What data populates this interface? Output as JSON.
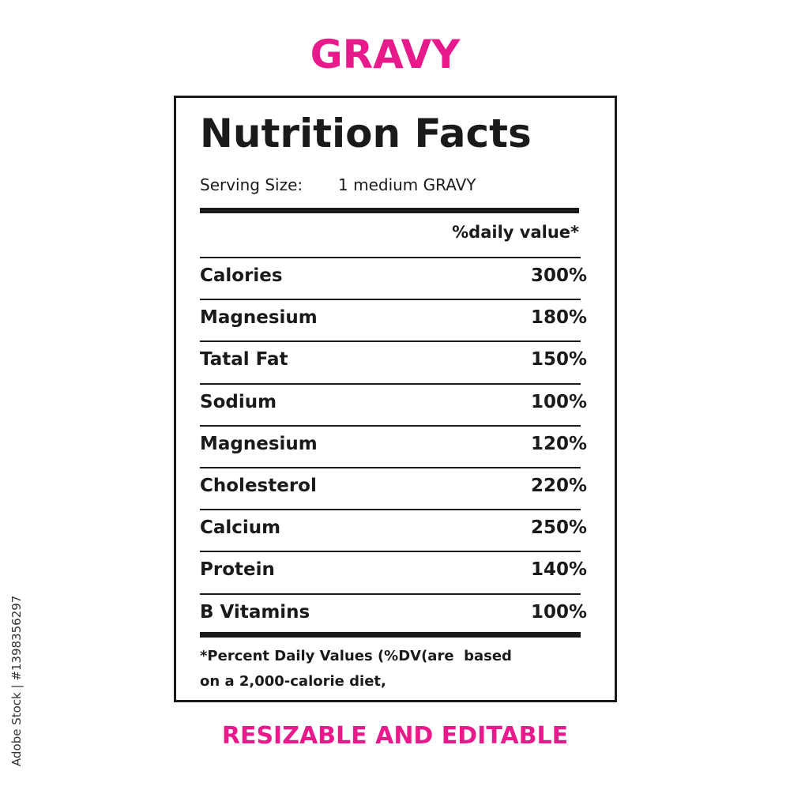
{
  "title": "GRAVY",
  "label": {
    "heading": "Nutrition Facts",
    "serving_label": "Serving Size:",
    "serving_value": "1 medium GRAVY",
    "column_header": "%daily value*",
    "rows": [
      [
        "Calories",
        "300%"
      ],
      [
        "Magnesium",
        "180%"
      ],
      [
        "Tatal Fat",
        "150%"
      ],
      [
        "Sodium",
        "100%"
      ],
      [
        "Magnesium",
        "120%"
      ],
      [
        "Cholesterol",
        "220%"
      ],
      [
        "Calcium",
        "250%"
      ],
      [
        "Protein",
        "140%"
      ],
      [
        "B Vitamins",
        "100%"
      ]
    ],
    "footnote": [
      "*Percent Daily Values (%DV(are  based",
      "on a 2,000-calorie diet,"
    ]
  },
  "caption": "RESIZABLE AND EDITABLE",
  "watermark": "Adobe Stock | #1398356297"
}
